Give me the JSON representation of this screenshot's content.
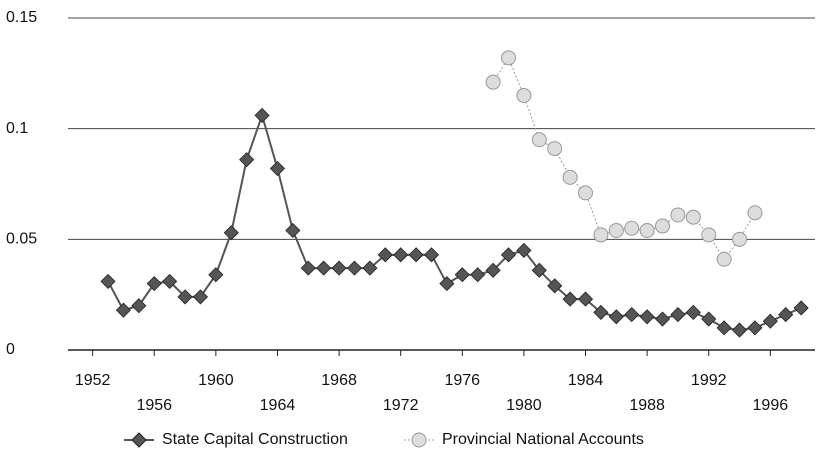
{
  "chart_data": {
    "type": "line",
    "x": [
      1953,
      1954,
      1955,
      1956,
      1957,
      1958,
      1959,
      1960,
      1961,
      1962,
      1963,
      1964,
      1965,
      1966,
      1967,
      1968,
      1969,
      1970,
      1971,
      1972,
      1973,
      1974,
      1975,
      1976,
      1977,
      1978,
      1979,
      1980,
      1981,
      1982,
      1983,
      1984,
      1985,
      1986,
      1987,
      1988,
      1989,
      1990,
      1991,
      1992,
      1993,
      1994,
      1995,
      1996,
      1997,
      1998
    ],
    "series": [
      {
        "name": "State Capital Construction",
        "color": "#555555",
        "marker": "diamond",
        "values": [
          0.031,
          0.018,
          0.02,
          0.03,
          0.031,
          0.024,
          0.024,
          0.034,
          0.053,
          0.086,
          0.106,
          0.082,
          0.054,
          0.037,
          0.037,
          0.037,
          0.037,
          0.037,
          0.043,
          0.043,
          0.043,
          0.043,
          0.03,
          0.034,
          0.034,
          0.036,
          0.043,
          0.045,
          0.036,
          0.029,
          0.023,
          0.023,
          0.017,
          0.015,
          0.016,
          0.015,
          0.014,
          0.016,
          0.017,
          0.014,
          0.01,
          0.009,
          0.01,
          0.013,
          0.016,
          0.019
        ]
      },
      {
        "name": "Provincial National Accounts",
        "color": "#999999",
        "marker": "circle",
        "values": [
          null,
          null,
          null,
          null,
          null,
          null,
          null,
          null,
          null,
          null,
          null,
          null,
          null,
          null,
          null,
          null,
          null,
          null,
          null,
          null,
          null,
          null,
          null,
          null,
          null,
          0.121,
          0.132,
          0.115,
          0.095,
          0.091,
          0.078,
          0.071,
          0.052,
          0.054,
          0.055,
          0.054,
          0.056,
          0.061,
          0.06,
          0.052,
          0.041,
          0.05,
          0.062,
          null,
          null,
          null
        ]
      }
    ],
    "xlim": [
      1950.4,
      1998.9
    ],
    "xticks": [
      1952,
      1956,
      1960,
      1964,
      1968,
      1972,
      1976,
      1980,
      1984,
      1988,
      1992,
      1996
    ],
    "ylim": [
      0,
      0.15
    ],
    "yticks": [
      0,
      0.05,
      0.1,
      0.15
    ],
    "grid": true,
    "legend": "bottom"
  }
}
